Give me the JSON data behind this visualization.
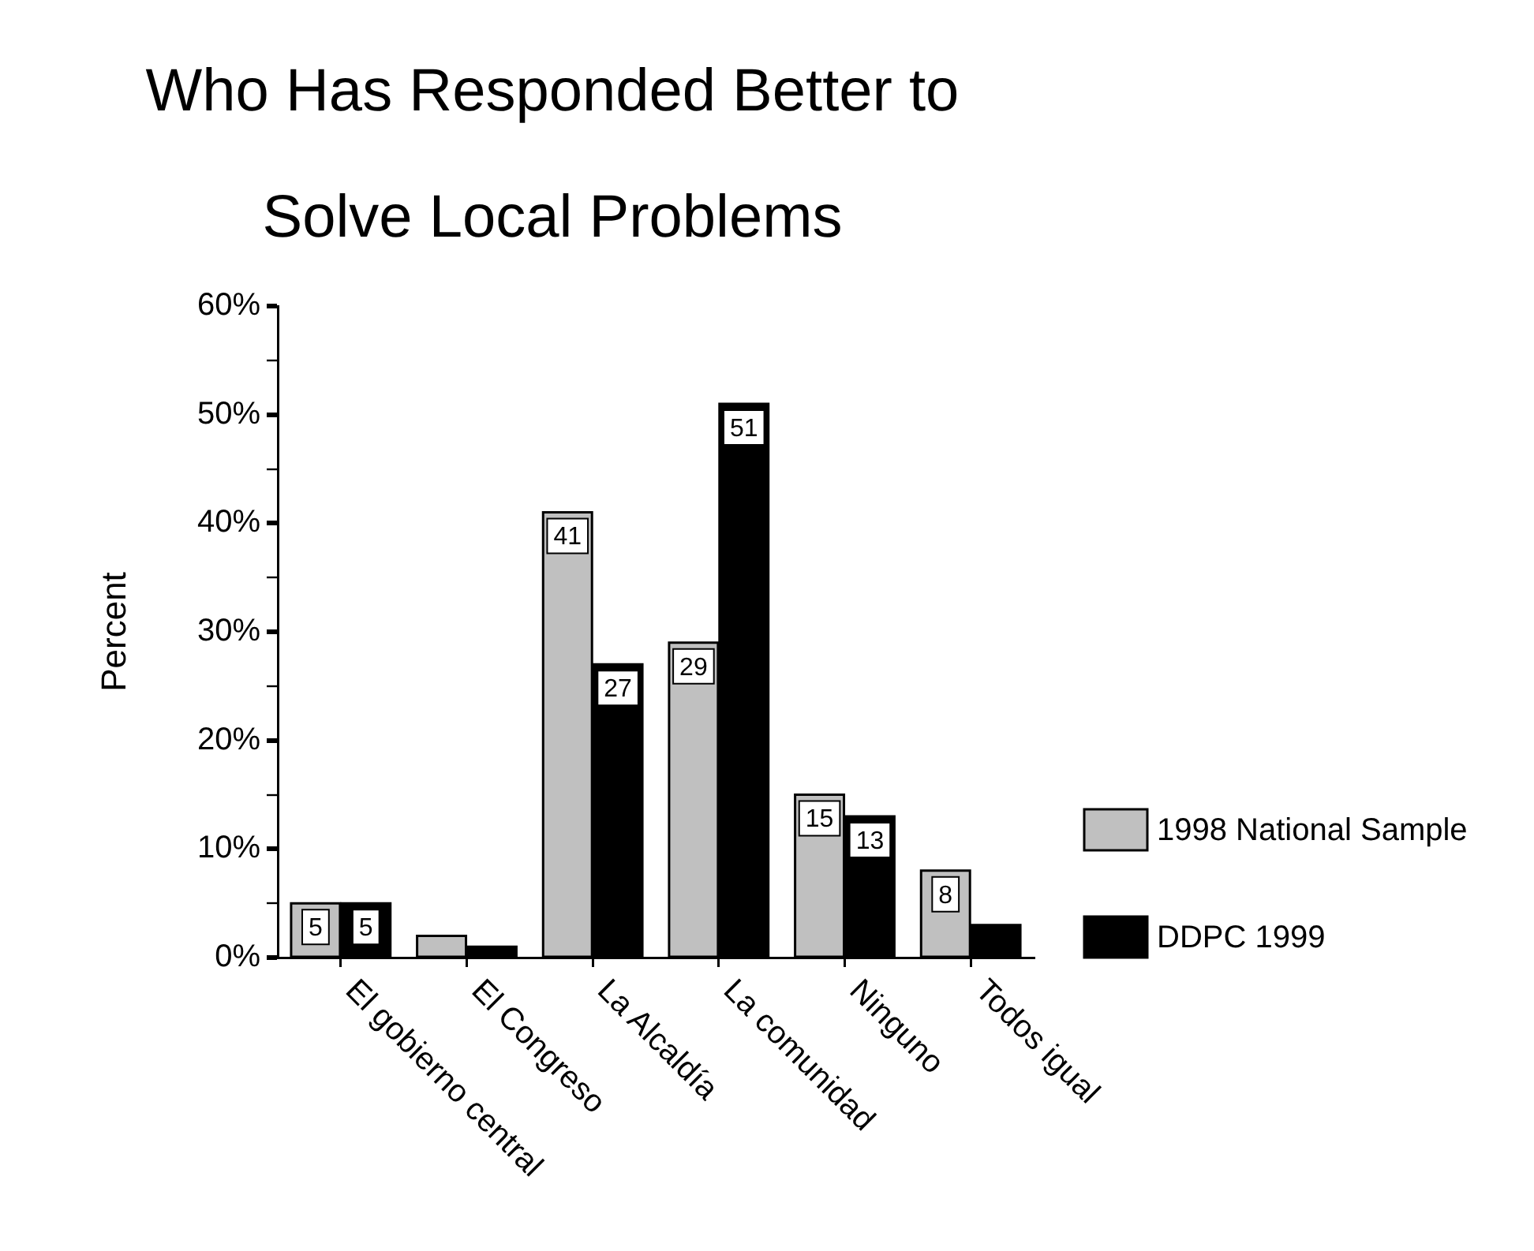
{
  "chart_data": {
    "type": "bar",
    "title": "Who Has Responded Better to Solve Local Problems",
    "ylabel": "Percent",
    "categories": [
      "El gobierno central",
      "El Congreso",
      "La Alcaldía",
      "La comunidad",
      "Ninguno",
      "Todos igual"
    ],
    "series": [
      {
        "name": "1998 National Sample",
        "color": "#c0c0c0",
        "values": [
          5,
          2,
          41,
          29,
          15,
          8
        ],
        "value_labels": [
          "5",
          null,
          "41",
          "29",
          "15",
          "8"
        ]
      },
      {
        "name": "DDPC 1999",
        "color": "#000000",
        "values": [
          5,
          1,
          27,
          51,
          13,
          3
        ],
        "value_labels": [
          "5",
          null,
          "27",
          "51",
          "13",
          null
        ]
      }
    ],
    "ylim": [
      0,
      60
    ],
    "yticks": [
      {
        "value": 0,
        "label": "0%"
      },
      {
        "value": 5,
        "label": null
      },
      {
        "value": 10,
        "label": "10%"
      },
      {
        "value": 15,
        "label": null
      },
      {
        "value": 20,
        "label": "20%"
      },
      {
        "value": 25,
        "label": null
      },
      {
        "value": 30,
        "label": "30%"
      },
      {
        "value": 35,
        "label": null
      },
      {
        "value": 40,
        "label": "40%"
      },
      {
        "value": 45,
        "label": null
      },
      {
        "value": 50,
        "label": "50%"
      },
      {
        "value": 55,
        "label": null
      },
      {
        "value": 60,
        "label": "60%"
      }
    ],
    "legend": "bottom right"
  }
}
